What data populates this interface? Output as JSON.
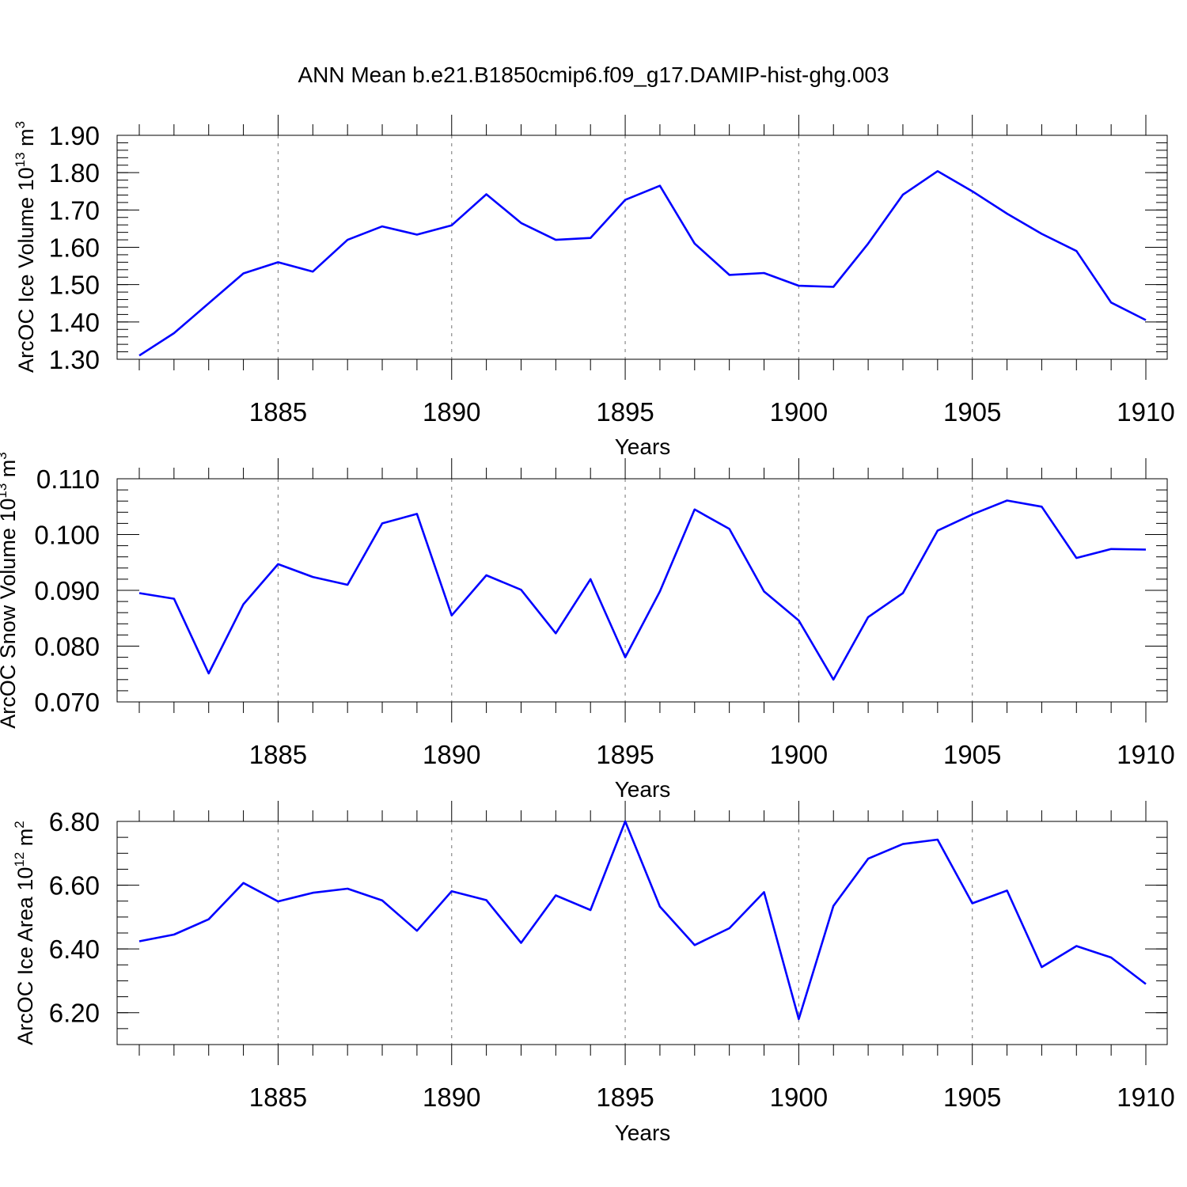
{
  "figure": {
    "title": "ANN Mean b.e21.B1850cmip6.f09_g17.DAMIP-hist-ghg.003",
    "line_color": "#0000ff"
  },
  "chart_data": [
    {
      "type": "line",
      "title": "",
      "xlabel": "Years",
      "ylabel_main": "ArcOC Ice Volume 10",
      "ylabel_exp": "13",
      "ylabel_unit": " m",
      "ylabel_unit_exp": "3",
      "xlim": [
        1881,
        1910
      ],
      "ylim": [
        1.3,
        1.9
      ],
      "x_ticks": [
        1885,
        1890,
        1895,
        1900,
        1905,
        1910
      ],
      "x_tick_labels": [
        "1885",
        "1890",
        "1895",
        "1900",
        "1905",
        "1910"
      ],
      "y_ticks": [
        1.3,
        1.4,
        1.5,
        1.6,
        1.7,
        1.8,
        1.9
      ],
      "y_tick_labels": [
        "1.30",
        "1.40",
        "1.50",
        "1.60",
        "1.70",
        "1.80",
        "1.90"
      ],
      "y_minor_step": 0.02,
      "grid": "vertical dashed at major x ticks",
      "series": [
        {
          "name": "ArcOC Ice Volume",
          "x": [
            1881,
            1882,
            1883,
            1884,
            1885,
            1886,
            1887,
            1888,
            1889,
            1890,
            1891,
            1892,
            1893,
            1894,
            1895,
            1896,
            1897,
            1898,
            1899,
            1900,
            1901,
            1902,
            1903,
            1904,
            1905,
            1906,
            1907,
            1908,
            1909,
            1910
          ],
          "values": [
            1.31,
            1.37,
            1.45,
            1.53,
            1.56,
            1.535,
            1.62,
            1.656,
            1.634,
            1.659,
            1.742,
            1.665,
            1.62,
            1.625,
            1.727,
            1.765,
            1.61,
            1.526,
            1.531,
            1.497,
            1.494,
            1.61,
            1.741,
            1.804,
            1.75,
            1.69,
            1.636,
            1.59,
            1.452,
            1.405
          ]
        }
      ]
    },
    {
      "type": "line",
      "title": "",
      "xlabel": "Years",
      "ylabel_main": "ArcOC Snow Volume 10",
      "ylabel_exp": "13",
      "ylabel_unit": " m",
      "ylabel_unit_exp": "3",
      "xlim": [
        1881,
        1910
      ],
      "ylim": [
        0.07,
        0.11
      ],
      "x_ticks": [
        1885,
        1890,
        1895,
        1900,
        1905,
        1910
      ],
      "x_tick_labels": [
        "1885",
        "1890",
        "1895",
        "1900",
        "1905",
        "1910"
      ],
      "y_ticks": [
        0.07,
        0.08,
        0.09,
        0.1,
        0.11
      ],
      "y_tick_labels": [
        "0.070",
        "0.080",
        "0.090",
        "0.100",
        "0.110"
      ],
      "y_minor_step": 0.002,
      "grid": "vertical dashed at major x ticks",
      "series": [
        {
          "name": "ArcOC Snow Volume",
          "x": [
            1881,
            1882,
            1883,
            1884,
            1885,
            1886,
            1887,
            1888,
            1889,
            1890,
            1891,
            1892,
            1893,
            1894,
            1895,
            1896,
            1897,
            1898,
            1899,
            1900,
            1901,
            1902,
            1903,
            1904,
            1905,
            1906,
            1907,
            1908,
            1909,
            1910
          ],
          "values": [
            0.0895,
            0.0885,
            0.0751,
            0.0875,
            0.0947,
            0.0924,
            0.091,
            0.102,
            0.1037,
            0.0855,
            0.0927,
            0.0901,
            0.0823,
            0.092,
            0.078,
            0.0898,
            0.1045,
            0.101,
            0.0898,
            0.0846,
            0.074,
            0.0852,
            0.0895,
            0.1007,
            0.1036,
            0.1061,
            0.105,
            0.0958,
            0.0974,
            0.0973
          ]
        }
      ]
    },
    {
      "type": "line",
      "title": "",
      "xlabel": "Years",
      "ylabel_main": "ArcOC Ice Area 10",
      "ylabel_exp": "12",
      "ylabel_unit": " m",
      "ylabel_unit_exp": "2",
      "xlim": [
        1881,
        1910
      ],
      "ylim": [
        6.1,
        6.8
      ],
      "x_ticks": [
        1885,
        1890,
        1895,
        1900,
        1905,
        1910
      ],
      "x_tick_labels": [
        "1885",
        "1890",
        "1895",
        "1900",
        "1905",
        "1910"
      ],
      "y_ticks": [
        6.2,
        6.4,
        6.6,
        6.8
      ],
      "y_tick_labels": [
        "6.20",
        "6.40",
        "6.60",
        "6.80"
      ],
      "y_minor_step": 0.05,
      "grid": "vertical dashed at major x ticks",
      "series": [
        {
          "name": "ArcOC Ice Area",
          "x": [
            1881,
            1882,
            1883,
            1884,
            1885,
            1886,
            1887,
            1888,
            1889,
            1890,
            1891,
            1892,
            1893,
            1894,
            1895,
            1896,
            1897,
            1898,
            1899,
            1900,
            1901,
            1902,
            1903,
            1904,
            1905,
            1906,
            1907,
            1908,
            1909,
            1910
          ],
          "values": [
            6.424,
            6.445,
            6.493,
            6.607,
            6.549,
            6.576,
            6.589,
            6.552,
            6.457,
            6.581,
            6.553,
            6.419,
            6.568,
            6.522,
            6.8,
            6.533,
            6.412,
            6.465,
            6.578,
            6.18,
            6.535,
            6.683,
            6.729,
            6.743,
            6.543,
            6.583,
            6.343,
            6.409,
            6.373,
            6.29
          ]
        }
      ]
    }
  ]
}
